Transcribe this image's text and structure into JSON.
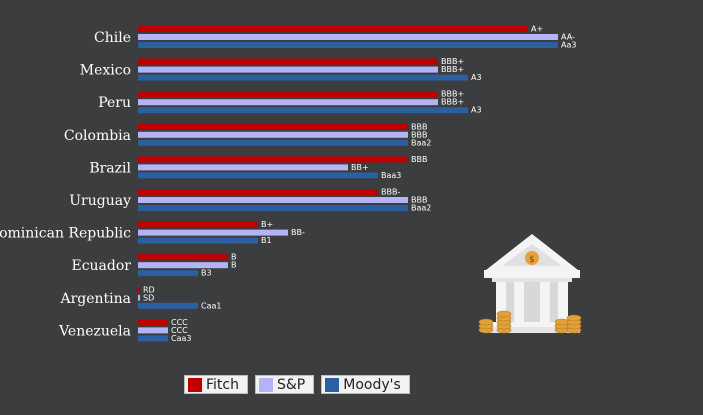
{
  "chart_data": {
    "type": "bar",
    "orientation": "horizontal",
    "rating_order": [
      "CCC",
      "B-",
      "B",
      "B+",
      "BB-",
      "BB",
      "BB+",
      "BBB-",
      "BBB",
      "BBB+",
      "A-",
      "A",
      "A+",
      "AA-",
      "AA",
      "AA+",
      "AAA"
    ],
    "categories": [
      "Chile",
      "Mexico",
      "Peru",
      "Colombia",
      "Brazil",
      "Uruguay",
      "Dominican Republic",
      "Ecuador",
      "Argentina",
      "Venezuela"
    ],
    "series": [
      {
        "name": "Fitch",
        "color": "#c00000",
        "labels": [
          "A+",
          "BBB+",
          "BBB+",
          "BBB",
          "BBB",
          "BBB-",
          "B+",
          "B",
          "RD",
          "CCC"
        ],
        "values": [
          13,
          10,
          10,
          9,
          9,
          8,
          4,
          3,
          0,
          1
        ]
      },
      {
        "name": "S&P",
        "color": "#b3b3f5",
        "labels": [
          "AA-",
          "BBB+",
          "BBB+",
          "BBB",
          "BB+",
          "BBB",
          "BB-",
          "B",
          "SD",
          "CCC"
        ],
        "values": [
          14,
          10,
          10,
          9,
          7,
          9,
          5,
          3,
          0,
          1
        ]
      },
      {
        "name": "Moody's",
        "color": "#2b5fa0",
        "labels": [
          "Aa3",
          "A3",
          "A3",
          "Baa2",
          "Baa3",
          "Baa2",
          "B1",
          "B3",
          "Caa1",
          "Caa3"
        ],
        "values": [
          14,
          11,
          11,
          9,
          8,
          9,
          4,
          2,
          2,
          1
        ]
      }
    ],
    "legend_position": "bottom-left",
    "grid": false
  }
}
